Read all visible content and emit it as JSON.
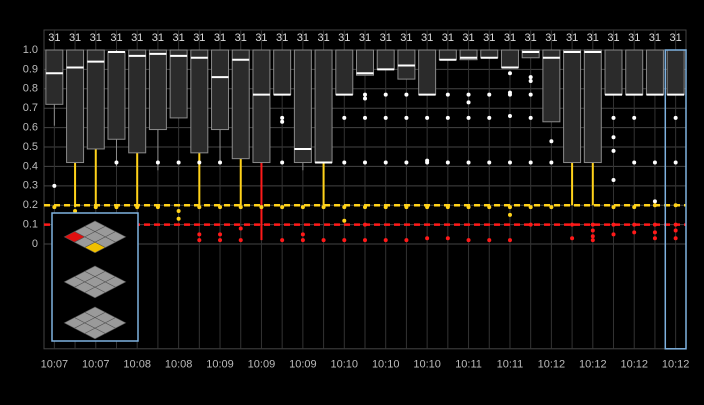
{
  "chart_data": {
    "type": "box",
    "categories": [
      "10:07",
      null,
      "10:07",
      null,
      "10:08",
      null,
      "10:08",
      null,
      "10:09",
      null,
      "10:09",
      null,
      "10:09",
      null,
      "10:10",
      null,
      "10:10",
      null,
      "10:10",
      null,
      "10:11",
      null,
      "10:11",
      null,
      "10:12",
      null,
      "10:12",
      null,
      "10:12",
      null,
      "10:12"
    ],
    "counts": [
      31,
      31,
      31,
      31,
      31,
      31,
      31,
      31,
      31,
      31,
      31,
      31,
      31,
      31,
      31,
      31,
      31,
      31,
      31,
      31,
      31,
      31,
      31,
      31,
      31,
      31,
      31,
      31,
      31,
      31,
      31
    ],
    "low": [
      0.61,
      0.19,
      0.2,
      0.4,
      0.2,
      0.38,
      0.65,
      0.2,
      0.42,
      0.2,
      0.02,
      0.77,
      0.38,
      0.2,
      0.77,
      0.87,
      0.9,
      0.85,
      0.77,
      0.95,
      0.95,
      0.96,
      0.91,
      0.96,
      0.63,
      0.2,
      0.2,
      0.77,
      0.77,
      0.77,
      0.77
    ],
    "q1": [
      0.72,
      0.42,
      0.49,
      0.54,
      0.47,
      0.59,
      0.65,
      0.47,
      0.59,
      0.44,
      0.42,
      0.77,
      0.42,
      0.42,
      0.77,
      0.87,
      0.9,
      0.85,
      0.77,
      0.95,
      0.95,
      0.96,
      0.91,
      0.96,
      0.63,
      0.42,
      0.42,
      0.77,
      0.77,
      0.77,
      0.77
    ],
    "median": [
      0.88,
      0.91,
      0.94,
      0.99,
      0.97,
      0.98,
      0.97,
      0.96,
      0.86,
      0.95,
      0.77,
      0.77,
      0.49,
      0.42,
      0.77,
      0.88,
      0.9,
      0.92,
      0.77,
      0.95,
      0.96,
      0.96,
      0.91,
      0.99,
      0.96,
      0.99,
      0.99,
      0.77,
      0.77,
      0.77,
      0.77
    ],
    "q3": [
      1,
      1,
      1,
      0.99,
      1,
      1,
      1,
      1,
      1,
      1,
      1,
      1,
      1,
      1,
      1,
      1,
      1,
      1,
      1,
      1,
      1,
      1,
      1,
      1,
      1,
      1,
      1,
      1,
      1,
      1,
      1
    ],
    "high": [
      1,
      1,
      1,
      1,
      1,
      1,
      1,
      1,
      1,
      1,
      1,
      1,
      1,
      1,
      1,
      1,
      1,
      1,
      1,
      1,
      1,
      1,
      1,
      1,
      1,
      1,
      1,
      1,
      1,
      1,
      1
    ],
    "outliers": [
      [
        0.3,
        0.19
      ],
      [
        0.17
      ],
      [
        0.19
      ],
      [
        0.42,
        0.19
      ],
      [
        0.19
      ],
      [
        0.42,
        0.19
      ],
      [
        0.42,
        0.17,
        0.13
      ],
      [
        0.42,
        0.19,
        0.05,
        0.02
      ],
      [
        0.42,
        0.19,
        0.05,
        0.02
      ],
      [
        0.19,
        0.08,
        0.02
      ],
      [
        0.19
      ],
      [
        0.65,
        0.63,
        0.42,
        0.19,
        0.02
      ],
      [
        0.19,
        0.05,
        0.02
      ],
      [
        0.19,
        0.02
      ],
      [
        0.65,
        0.42,
        0.19,
        0.12,
        0.02
      ],
      [
        0.77,
        0.75,
        0.65,
        0.42,
        0.19,
        0.1,
        0.02
      ],
      [
        0.77,
        0.65,
        0.42,
        0.19,
        0.02
      ],
      [
        0.77,
        0.65,
        0.42,
        0.19,
        0.02
      ],
      [
        0.65,
        0.42,
        0.43,
        0.19,
        0.03
      ],
      [
        0.77,
        0.65,
        0.42,
        0.19,
        0.03
      ],
      [
        0.77,
        0.73,
        0.65,
        0.42,
        0.19,
        0.02
      ],
      [
        0.77,
        0.65,
        0.42,
        0.19,
        0.02
      ],
      [
        0.88,
        0.78,
        0.77,
        0.66,
        0.42,
        0.19,
        0.15,
        0.02
      ],
      [
        0.86,
        0.84,
        0.77,
        0.65,
        0.42,
        0.19,
        0.1
      ],
      [
        0.53,
        0.42,
        0.19
      ],
      [
        0.1,
        0.03
      ],
      [
        0.1,
        0.07,
        0.04,
        0.02
      ],
      [
        0.65,
        0.55,
        0.48,
        0.33,
        0.19,
        0.1,
        0.05
      ],
      [
        0.65,
        0.42,
        0.19,
        0.1,
        0.06
      ],
      [
        0.42,
        0.22,
        0.2,
        0.1,
        0.06,
        0.03
      ],
      [
        0.65,
        0.42,
        0.2,
        0.1,
        0.07,
        0.03
      ]
    ],
    "thresholds": [
      {
        "value": 0.1,
        "color": "#ff1a1a"
      },
      {
        "value": 0.2,
        "color": "#ffd21a"
      }
    ],
    "box_color": "#2b2b2b",
    "box_stroke": "#8a8a8a",
    "median_color": "#ffffff",
    "outlier_color": "#ffffff",
    "selected": 30,
    "ylim": [
      -0.54,
      1
    ],
    "yticks": [
      0,
      0.1,
      0.2,
      0.3,
      0.4,
      0.5,
      0.6,
      0.7,
      0.8,
      0.9,
      {
        "value": 1,
        "label": "1.0"
      }
    ],
    "grid": true
  }
}
